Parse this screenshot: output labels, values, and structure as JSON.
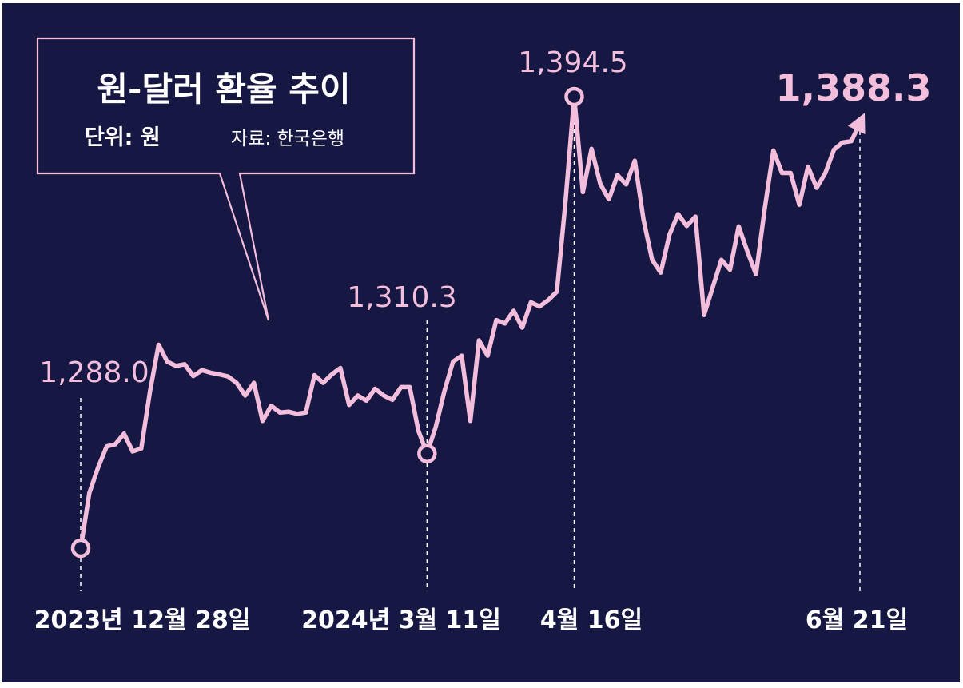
{
  "colors": {
    "background": "#171743",
    "line": "#f2bedc",
    "text_white": "#ffffff",
    "box_border": "#f2bedc"
  },
  "legend_box": {
    "title": "원-달러 환율 추이",
    "unit": "단위: 원",
    "source": "자료: 한국은행"
  },
  "chart_data": {
    "type": "line",
    "title": "원-달러 환율 추이",
    "ylabel": "",
    "xlabel": "",
    "ylim": [
      1270,
      1400
    ],
    "unit": "단위: 원",
    "source": "자료: 한국은행",
    "series": [
      {
        "values": [
          1288.0,
          1301.0,
          1307.0,
          1312.0,
          1312.5,
          1315.0,
          1310.8,
          1311.5,
          1325.0,
          1336.0,
          1332.0,
          1331.0,
          1331.4,
          1328.6,
          1330.0,
          1329.4,
          1329.0,
          1328.5,
          1327.0,
          1324.0,
          1327.0,
          1318.0,
          1321.6,
          1320.0,
          1320.2,
          1319.7,
          1320.0,
          1328.8,
          1327.0,
          1329.0,
          1330.5,
          1321.8,
          1324.0,
          1322.8,
          1325.6,
          1324.0,
          1323.0,
          1326.0,
          1326.0,
          1315.7,
          1310.3,
          1316.6,
          1325.0,
          1332.0,
          1333.4,
          1318.0,
          1337.0,
          1333.4,
          1341.8,
          1341.0,
          1344.0,
          1340.0,
          1346.0,
          1345.0,
          1346.5,
          1348.5,
          1370.0,
          1394.5,
          1372.0,
          1382.2,
          1374.0,
          1370.3,
          1376.0,
          1373.8,
          1379.4,
          1365.5,
          1356.0,
          1353.0,
          1362.0,
          1366.8,
          1364.0,
          1366.2,
          1343.0,
          1349.5,
          1356.0,
          1353.7,
          1363.9,
          1358.0,
          1352.6,
          1368.0,
          1381.8,
          1376.5,
          1376.5,
          1369.0,
          1378.0,
          1373.0,
          1376.5,
          1382.0,
          1383.7,
          1384.0,
          1388.3
        ]
      }
    ],
    "annotations": [
      {
        "label": "1,288.0",
        "date": "2023년 12월 28일",
        "index": 0
      },
      {
        "label": "1,310.3",
        "date": "2024년 3월 11일",
        "index": 40
      },
      {
        "label": "1,394.5",
        "date": "4월 16일",
        "index": 57
      },
      {
        "label": "1,388.3",
        "date": "6월 21일",
        "index": 90
      }
    ]
  }
}
